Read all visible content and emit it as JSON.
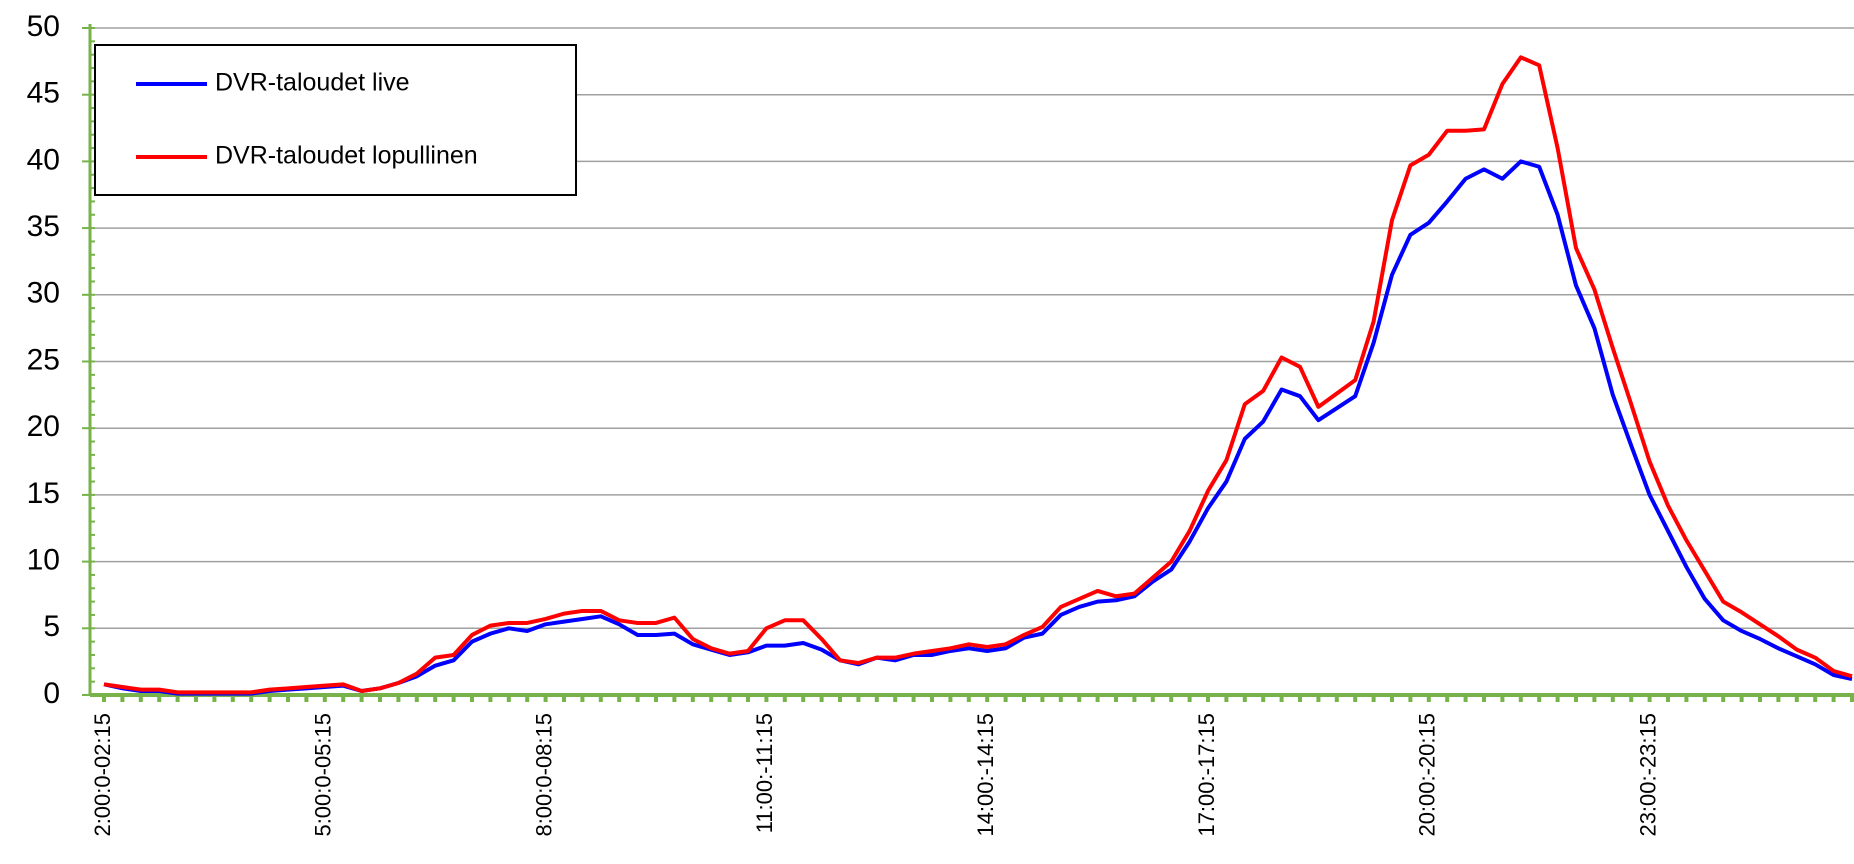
{
  "chart_data": {
    "type": "line",
    "categories": [
      "2:00:0-02:15",
      null,
      null,
      null,
      null,
      null,
      null,
      null,
      null,
      null,
      null,
      null,
      "5:00:0-05:15",
      null,
      null,
      null,
      null,
      null,
      null,
      null,
      null,
      null,
      null,
      null,
      "8:00:0-08:15",
      null,
      null,
      null,
      null,
      null,
      null,
      null,
      null,
      null,
      null,
      null,
      "11:00:-11:15",
      null,
      null,
      null,
      null,
      null,
      null,
      null,
      null,
      null,
      null,
      null,
      "14:00:-14:15",
      null,
      null,
      null,
      null,
      null,
      null,
      null,
      null,
      null,
      null,
      null,
      "17:00:-17:15",
      null,
      null,
      null,
      null,
      null,
      null,
      null,
      null,
      null,
      null,
      null,
      "20:00:-20:15",
      null,
      null,
      null,
      null,
      null,
      null,
      null,
      null,
      null,
      null,
      null,
      "23:00:-23:15",
      null,
      null,
      null,
      null,
      null,
      null,
      null,
      null,
      null,
      null,
      null
    ],
    "series": [
      {
        "name": "DVR-taloudet live",
        "color": "#0000ff",
        "values": [
          0.8,
          0.5,
          0.3,
          0.3,
          0.1,
          0.1,
          0.1,
          0.1,
          0.1,
          0.3,
          0.4,
          0.5,
          0.6,
          0.7,
          0.3,
          0.5,
          0.9,
          1.4,
          2.2,
          2.6,
          4.0,
          4.6,
          5.0,
          4.8,
          5.3,
          5.5,
          5.7,
          5.9,
          5.3,
          4.5,
          4.5,
          4.6,
          3.8,
          3.4,
          3.0,
          3.2,
          3.7,
          3.7,
          3.9,
          3.4,
          2.6,
          2.3,
          2.8,
          2.6,
          3.0,
          3.0,
          3.3,
          3.5,
          3.3,
          3.5,
          4.3,
          4.6,
          6.0,
          6.6,
          7.0,
          7.1,
          7.4,
          8.5,
          9.4,
          11.5,
          14.0,
          16.0,
          19.2,
          20.5,
          22.9,
          22.4,
          20.6,
          21.5,
          22.4,
          26.4,
          31.5,
          34.5,
          35.4,
          37.0,
          38.7,
          39.4,
          38.7,
          40.0,
          39.6,
          36.0,
          30.7,
          27.5,
          22.5,
          18.7,
          15.0,
          12.3,
          9.6,
          7.2,
          5.6,
          4.8,
          4.2,
          3.5,
          2.9,
          2.3,
          1.5,
          1.2
        ]
      },
      {
        "name": "DVR-taloudet lopullinen",
        "color": "#ff0000",
        "values": [
          0.8,
          0.6,
          0.4,
          0.4,
          0.2,
          0.2,
          0.2,
          0.2,
          0.2,
          0.4,
          0.5,
          0.6,
          0.7,
          0.8,
          0.3,
          0.5,
          0.9,
          1.6,
          2.8,
          3.0,
          4.5,
          5.2,
          5.4,
          5.4,
          5.7,
          6.1,
          6.3,
          6.3,
          5.6,
          5.4,
          5.4,
          5.8,
          4.2,
          3.5,
          3.1,
          3.3,
          5.0,
          5.6,
          5.6,
          4.2,
          2.6,
          2.4,
          2.8,
          2.8,
          3.1,
          3.3,
          3.5,
          3.8,
          3.6,
          3.8,
          4.5,
          5.1,
          6.6,
          7.2,
          7.8,
          7.4,
          7.6,
          8.8,
          10.0,
          12.3,
          15.3,
          17.6,
          21.8,
          22.8,
          25.3,
          24.6,
          21.6,
          22.6,
          23.6,
          28.0,
          35.6,
          39.7,
          40.5,
          42.3,
          42.3,
          42.4,
          45.8,
          47.8,
          47.2,
          41.0,
          33.5,
          30.4,
          26.0,
          21.8,
          17.5,
          14.2,
          11.6,
          9.3,
          7.0,
          6.2,
          5.3,
          4.4,
          3.4,
          2.8,
          1.8,
          1.4
        ]
      }
    ],
    "ylim": [
      0,
      50
    ],
    "yticks": [
      0,
      5,
      10,
      15,
      20,
      25,
      30,
      35,
      40,
      45,
      50
    ],
    "grid": true,
    "legend": "upper left",
    "axis_color": "#77b24a"
  }
}
